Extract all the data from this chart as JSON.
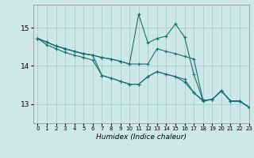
{
  "xlabel": "Humidex (Indice chaleur)",
  "ylabel": "",
  "bg_color": "#cce8e8",
  "line_color": "#1a7070",
  "grid_color": "#aacccc",
  "xlim": [
    -0.5,
    23
  ],
  "ylim": [
    12.5,
    15.6
  ],
  "yticks": [
    13,
    14,
    15
  ],
  "xticks": [
    0,
    1,
    2,
    3,
    4,
    5,
    6,
    7,
    8,
    9,
    10,
    11,
    12,
    13,
    14,
    15,
    16,
    17,
    18,
    19,
    20,
    21,
    22,
    23
  ],
  "series": [
    [
      14.72,
      14.62,
      14.52,
      14.45,
      14.38,
      14.32,
      14.28,
      14.22,
      14.18,
      14.12,
      14.05,
      15.35,
      14.6,
      14.72,
      14.78,
      15.1,
      14.75,
      13.78,
      13.1,
      13.12,
      13.35,
      13.08,
      13.08,
      12.92
    ],
    [
      14.72,
      14.62,
      14.52,
      14.45,
      14.38,
      14.32,
      14.28,
      14.22,
      14.18,
      14.12,
      14.05,
      14.05,
      14.05,
      14.45,
      14.38,
      14.32,
      14.25,
      14.18,
      13.1,
      13.12,
      13.35,
      13.08,
      13.08,
      12.92
    ],
    [
      14.72,
      14.62,
      14.52,
      14.45,
      14.38,
      14.32,
      14.28,
      13.75,
      13.68,
      13.6,
      13.52,
      13.52,
      13.72,
      13.85,
      13.78,
      13.72,
      13.65,
      13.3,
      13.1,
      13.12,
      13.35,
      13.08,
      13.08,
      12.92
    ],
    [
      14.72,
      14.55,
      14.45,
      14.35,
      14.28,
      14.22,
      14.15,
      13.75,
      13.68,
      13.6,
      13.52,
      13.52,
      13.72,
      13.85,
      13.78,
      13.72,
      13.58,
      13.3,
      13.08,
      13.12,
      13.35,
      13.08,
      13.08,
      12.92
    ]
  ]
}
